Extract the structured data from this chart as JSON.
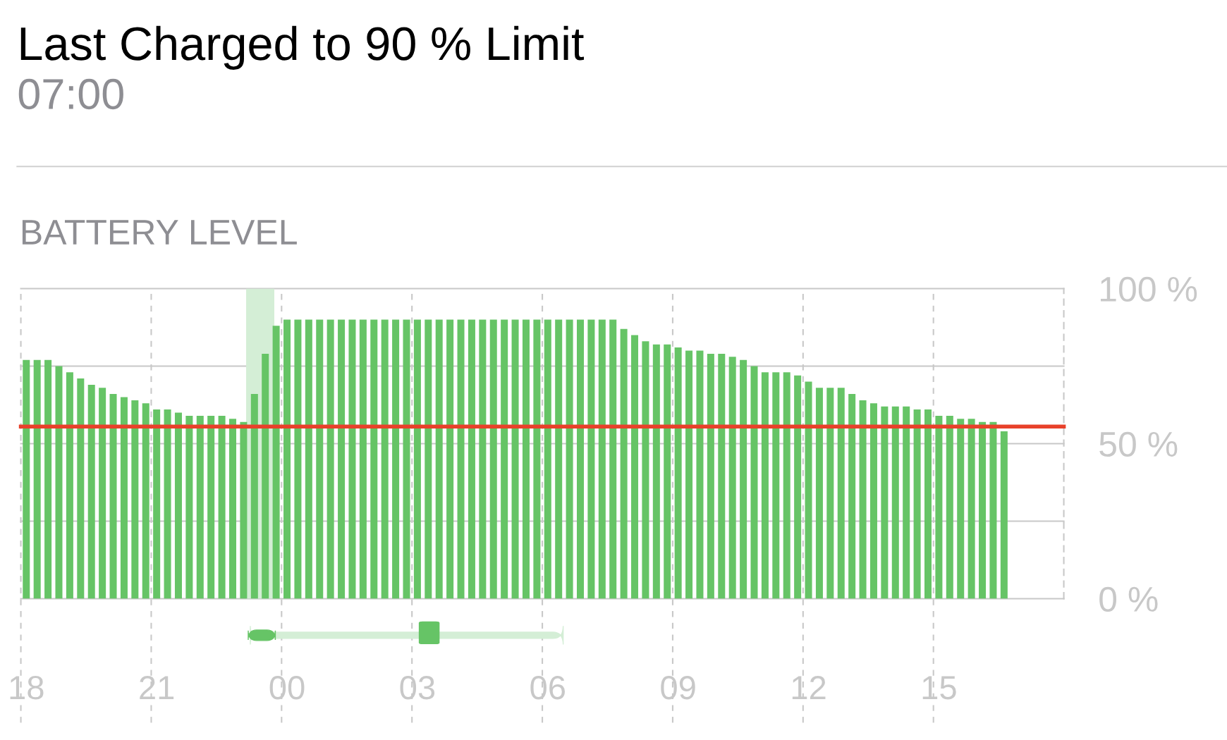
{
  "chart_data": {
    "type": "bar",
    "title": "Last Charged to 90 % Limit",
    "subtitle": "07:00",
    "annotations": [
      "BATTERY LEVEL"
    ],
    "categories": [
      "18",
      null,
      null,
      null,
      null,
      null,
      null,
      null,
      null,
      null,
      null,
      null,
      "21",
      null,
      null,
      null,
      null,
      null,
      null,
      null,
      null,
      null,
      null,
      null,
      "00",
      null,
      null,
      null,
      null,
      null,
      null,
      null,
      null,
      null,
      null,
      null,
      "03",
      null,
      null,
      null,
      null,
      null,
      null,
      null,
      null,
      null,
      null,
      null,
      "06",
      null,
      null,
      null,
      null,
      null,
      null,
      null,
      null,
      null,
      null,
      null,
      "09",
      null,
      null,
      null,
      null,
      null,
      null,
      null,
      null,
      null,
      null,
      null,
      "12",
      null,
      null,
      null,
      null,
      null,
      null,
      null,
      null,
      null,
      null,
      null,
      "15",
      null,
      null,
      null,
      null,
      null,
      null,
      null,
      null,
      null,
      null,
      null
    ],
    "values": [
      77,
      77,
      77,
      75,
      73,
      71,
      69,
      68,
      66,
      65,
      64,
      63,
      61,
      61,
      60,
      59,
      59,
      59,
      59,
      58,
      57,
      66,
      79,
      88,
      90,
      90,
      90,
      90,
      90,
      90,
      90,
      90,
      90,
      90,
      90,
      90,
      90,
      90,
      90,
      90,
      90,
      90,
      90,
      90,
      90,
      90,
      90,
      90,
      90,
      90,
      90,
      90,
      90,
      90,
      90,
      87,
      85,
      83,
      82,
      82,
      81,
      80,
      80,
      79,
      79,
      78,
      77,
      75,
      73,
      73,
      73,
      72,
      70,
      68,
      68,
      68,
      66,
      64,
      63,
      62,
      62,
      62,
      61,
      61,
      59,
      59,
      58,
      58,
      57,
      57,
      54,
      null,
      null,
      null,
      null,
      null
    ],
    "color": "#66c466",
    "ylim": [
      0,
      100
    ],
    "yticks": [
      {
        "value": 0,
        "label": "0 %"
      },
      {
        "value": 25,
        "label": null
      },
      {
        "value": 50,
        "label": "50 %"
      },
      {
        "value": 75,
        "label": null
      },
      {
        "value": 100,
        "label": "100 %"
      }
    ],
    "ref_lines": [
      {
        "axis": "y",
        "value": 55.5,
        "label": null,
        "color": "#e8412a"
      }
    ],
    "grid": true
  }
}
